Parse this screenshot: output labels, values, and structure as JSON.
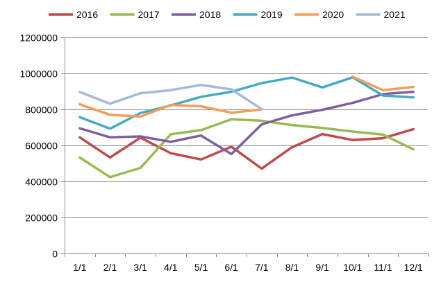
{
  "chart_data": {
    "type": "line",
    "title": "",
    "xlabel": "",
    "ylabel": "",
    "categories": [
      "1/1",
      "2/1",
      "3/1",
      "4/1",
      "5/1",
      "6/1",
      "7/1",
      "8/1",
      "9/1",
      "10/1",
      "11/1",
      "12/1"
    ],
    "ylim": [
      0,
      1200000
    ],
    "yticks": [
      0,
      200000,
      400000,
      600000,
      800000,
      1000000,
      1200000
    ],
    "ytick_labels": [
      "0",
      "200000",
      "400000",
      "600000",
      "800000",
      "1000000",
      "1200000"
    ],
    "grid": "horizontal",
    "legend_position": "top",
    "series": [
      {
        "name": "2016",
        "color": "#be4b48",
        "values": [
          645000,
          533000,
          643000,
          557000,
          522000,
          593000,
          471000,
          590000,
          663000,
          630000,
          640000,
          690000
        ]
      },
      {
        "name": "2017",
        "color": "#98b954",
        "values": [
          533000,
          424000,
          475000,
          662000,
          685000,
          745000,
          737000,
          713000,
          697000,
          677000,
          660000,
          578000
        ]
      },
      {
        "name": "2018",
        "color": "#7d60a0",
        "values": [
          695000,
          645000,
          650000,
          620000,
          655000,
          552000,
          717000,
          767000,
          798000,
          836000,
          885000,
          898000
        ]
      },
      {
        "name": "2019",
        "color": "#46aac5",
        "values": [
          757000,
          693000,
          780000,
          822000,
          870000,
          898000,
          946000,
          977000,
          922000,
          978000,
          877000,
          867000
        ]
      },
      {
        "name": "2020",
        "color": "#f59d56",
        "values": [
          828000,
          770000,
          760000,
          825000,
          817000,
          782000,
          800000,
          null,
          null,
          982000,
          907000,
          925000
        ]
      },
      {
        "name": "2021",
        "color": "#a5b9db",
        "values": [
          897000,
          832000,
          890000,
          907000,
          936000,
          911000,
          802000,
          null,
          null,
          null,
          null,
          null
        ]
      }
    ]
  }
}
